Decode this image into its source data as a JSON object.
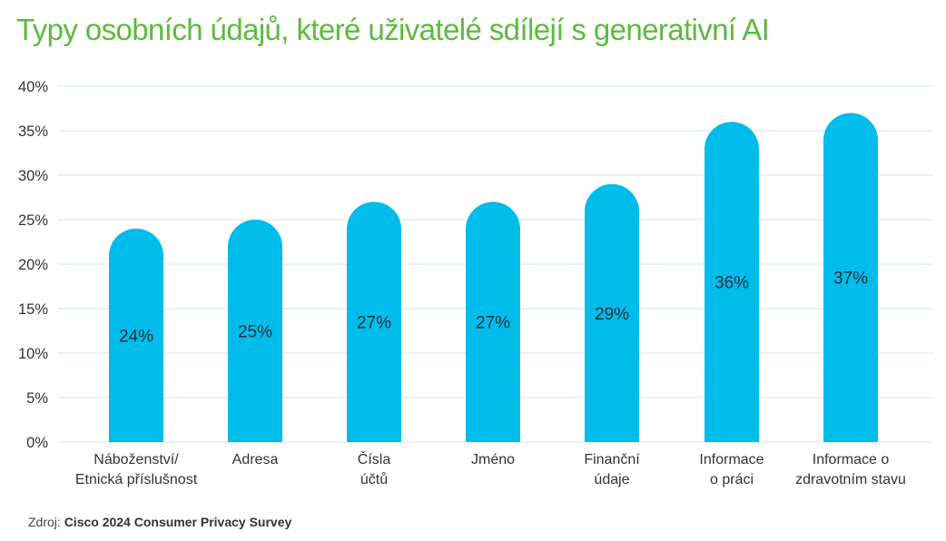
{
  "chart_data": {
    "type": "bar",
    "title": "Typy osobních údajů, které uživatelé sdílejí s generativní AI",
    "categories": [
      [
        "Náboženství/",
        "Etnická příslušnost"
      ],
      [
        "Adresa"
      ],
      [
        "Čísla",
        "účtů"
      ],
      [
        "Jméno"
      ],
      [
        "Finanční",
        "údaje"
      ],
      [
        "Informace",
        "o práci"
      ],
      [
        "Informace o",
        "zdravotním stavu"
      ]
    ],
    "values": [
      24,
      25,
      27,
      27,
      29,
      36,
      37
    ],
    "data_labels": [
      "24%",
      "25%",
      "27%",
      "27%",
      "29%",
      "36%",
      "37%"
    ],
    "ylim": [
      0,
      40
    ],
    "yticks": [
      0,
      5,
      10,
      15,
      20,
      25,
      30,
      35,
      40
    ],
    "ytick_labels": [
      "0%",
      "5%",
      "10%",
      "15%",
      "20%",
      "25%",
      "30%",
      "35%",
      "40%"
    ],
    "xlabel": "",
    "ylabel": "",
    "grid": true,
    "legend": "none",
    "colors": {
      "bar": "#00bceb",
      "grid": "#cfe6f3",
      "title": "#5cbb3c",
      "tick_text": "#333333",
      "data_label": "#1f2f3f"
    }
  },
  "footer": {
    "source_prefix": "Zdroj:",
    "source_name": "Cisco 2024 Consumer Privacy Survey"
  }
}
